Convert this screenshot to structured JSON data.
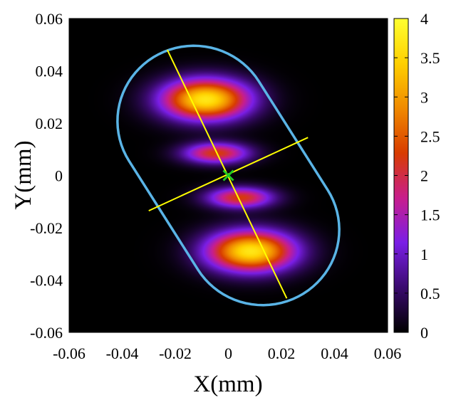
{
  "chart_data": {
    "type": "heatmap",
    "title": "",
    "xlabel": "X(mm)",
    "ylabel": "Y(mm)",
    "xlim": [
      -0.06,
      0.06
    ],
    "ylim": [
      -0.06,
      0.06
    ],
    "x_ticks": [
      -0.06,
      -0.04,
      -0.02,
      0,
      0.02,
      0.04,
      0.06
    ],
    "x_tick_labels": [
      "-0.06",
      "-0.04",
      "-0.02",
      "0",
      "0.02",
      "0.04",
      "0.06"
    ],
    "y_ticks": [
      -0.06,
      -0.04,
      -0.02,
      0,
      0.02,
      0.04,
      0.06
    ],
    "y_tick_labels": [
      "-0.06",
      "-0.04",
      "-0.02",
      "0",
      "0.02",
      "0.04",
      "0.06"
    ],
    "colorbar": {
      "range": [
        0,
        4
      ],
      "ticks": [
        0,
        0.5,
        1,
        1.5,
        2,
        2.5,
        3,
        3.5,
        4
      ],
      "tick_labels": [
        "0",
        "0.5",
        "1",
        "1.5",
        "2",
        "2.5",
        "3",
        "3.5",
        "4"
      ],
      "colormap": [
        "#000000",
        "#3a0a6e",
        "#7a1ee6",
        "#c81e8c",
        "#d83c00",
        "#f08a00",
        "#ffd000",
        "#ffff30"
      ]
    },
    "lobes": [
      {
        "x": -0.0085,
        "y": 0.029,
        "sx": 0.0165,
        "sy": 0.0078,
        "peak": 3.7
      },
      {
        "x": -0.0045,
        "y": 0.0085,
        "sx": 0.0125,
        "sy": 0.004,
        "peak": 2.25
      },
      {
        "x": 0.0045,
        "y": -0.0085,
        "sx": 0.0125,
        "sy": 0.004,
        "peak": 2.25
      },
      {
        "x": 0.0085,
        "y": -0.029,
        "sx": 0.0165,
        "sy": 0.0078,
        "peak": 3.7
      }
    ],
    "boundary": {
      "type": "stadium",
      "center": [
        0,
        0
      ],
      "angle_deg": 122,
      "half_length": 0.0245,
      "radius": 0.0288,
      "color": "#5ab4e6"
    },
    "principal_axes": {
      "major": {
        "x1": -0.023,
        "y1": 0.048,
        "x2": 0.022,
        "y2": -0.047
      },
      "minor": {
        "x1": -0.03,
        "y1": -0.0135,
        "x2": 0.03,
        "y2": 0.0145
      },
      "color": "#ffff00"
    },
    "center_marker": {
      "x": 0,
      "y": 0,
      "symbol": "×",
      "color": "#22cc22"
    }
  }
}
